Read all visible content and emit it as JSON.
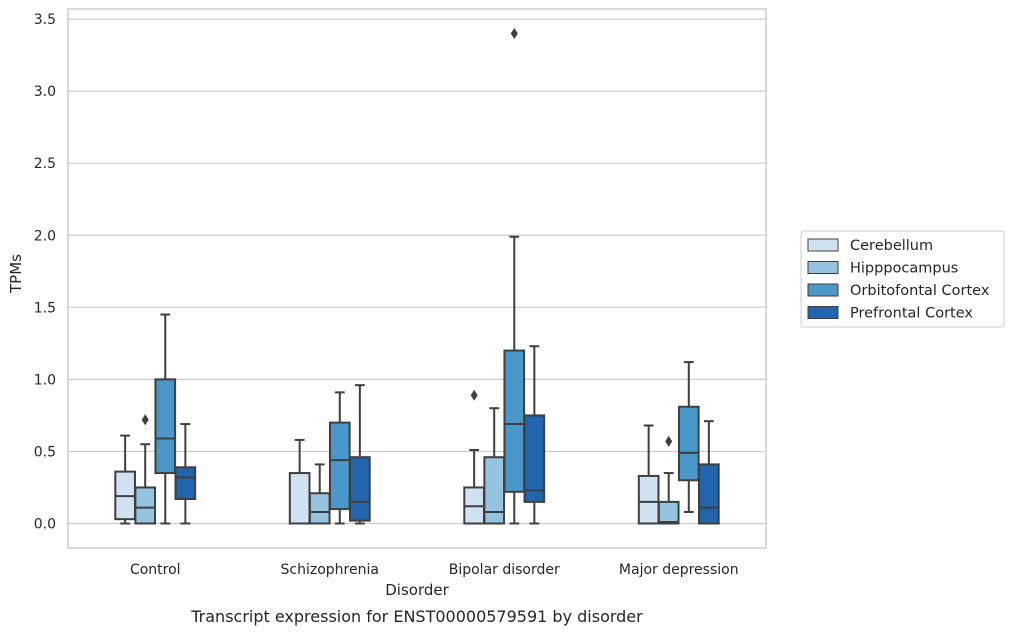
{
  "chart_data": {
    "type": "boxplot",
    "caption": "Transcript expression for ENST00000579591 by disorder",
    "xlabel": "Disorder",
    "ylabel": "TPMs",
    "ylim": [
      -0.17,
      3.57
    ],
    "yticks": [
      0.0,
      0.5,
      1.0,
      1.5,
      2.0,
      2.5,
      3.0,
      3.5
    ],
    "ytick_labels": [
      "0.0",
      "0.5",
      "1.0",
      "1.5",
      "2.0",
      "2.5",
      "3.0",
      "3.5"
    ],
    "grid": "horizontal",
    "legend_position": "right",
    "categories": [
      "Control",
      "Schizophrenia",
      "Bipolar disorder",
      "Major depression"
    ],
    "series": [
      {
        "name": "Cerebellum",
        "color": "#d0e1f2",
        "boxes": [
          {
            "whislo": 0.0,
            "q1": 0.03,
            "med": 0.19,
            "q3": 0.36,
            "whishi": 0.61,
            "fliers": []
          },
          {
            "whislo": 0.0,
            "q1": 0.0,
            "med": 0.0,
            "q3": 0.35,
            "whishi": 0.58,
            "fliers": []
          },
          {
            "whislo": 0.0,
            "q1": 0.0,
            "med": 0.12,
            "q3": 0.25,
            "whishi": 0.51,
            "fliers": [
              0.89
            ]
          },
          {
            "whislo": 0.0,
            "q1": 0.0,
            "med": 0.15,
            "q3": 0.33,
            "whishi": 0.68,
            "fliers": []
          }
        ]
      },
      {
        "name": "Hipppocampus",
        "color": "#94c4df",
        "boxes": [
          {
            "whislo": 0.0,
            "q1": 0.0,
            "med": 0.11,
            "q3": 0.25,
            "whishi": 0.55,
            "fliers": [
              0.72
            ]
          },
          {
            "whislo": 0.0,
            "q1": 0.0,
            "med": 0.08,
            "q3": 0.21,
            "whishi": 0.41,
            "fliers": []
          },
          {
            "whislo": 0.0,
            "q1": 0.0,
            "med": 0.08,
            "q3": 0.46,
            "whishi": 0.8,
            "fliers": []
          },
          {
            "whislo": 0.0,
            "q1": 0.0,
            "med": 0.01,
            "q3": 0.15,
            "whishi": 0.35,
            "fliers": [
              0.57
            ]
          }
        ]
      },
      {
        "name": "Orbitofontal Cortex",
        "color": "#4a98c9",
        "boxes": [
          {
            "whislo": 0.0,
            "q1": 0.35,
            "med": 0.59,
            "q3": 1.0,
            "whishi": 1.45,
            "fliers": []
          },
          {
            "whislo": 0.0,
            "q1": 0.1,
            "med": 0.44,
            "q3": 0.7,
            "whishi": 0.91,
            "fliers": []
          },
          {
            "whislo": 0.0,
            "q1": 0.22,
            "med": 0.69,
            "q3": 1.2,
            "whishi": 1.99,
            "fliers": [
              3.4
            ]
          },
          {
            "whislo": 0.08,
            "q1": 0.3,
            "med": 0.49,
            "q3": 0.81,
            "whishi": 1.12,
            "fliers": []
          }
        ]
      },
      {
        "name": "Prefrontal Cortex",
        "color": "#2166ac",
        "boxes": [
          {
            "whislo": 0.0,
            "q1": 0.17,
            "med": 0.32,
            "q3": 0.39,
            "whishi": 0.69,
            "fliers": []
          },
          {
            "whislo": 0.0,
            "q1": 0.02,
            "med": 0.15,
            "q3": 0.46,
            "whishi": 0.96,
            "fliers": []
          },
          {
            "whislo": 0.0,
            "q1": 0.15,
            "med": 0.23,
            "q3": 0.75,
            "whishi": 1.23,
            "fliers": []
          },
          {
            "whislo": 0.0,
            "q1": 0.0,
            "med": 0.11,
            "q3": 0.41,
            "whishi": 0.71,
            "fliers": []
          }
        ]
      }
    ]
  }
}
